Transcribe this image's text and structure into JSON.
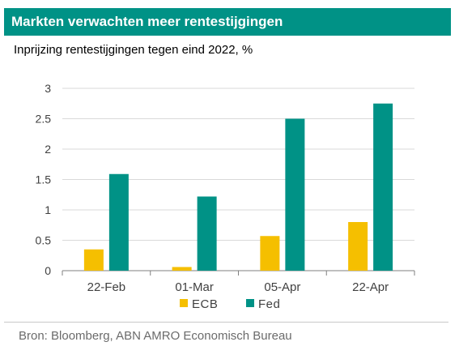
{
  "header": {
    "title": "Markten verwachten meer rentestijgingen"
  },
  "chart_data": {
    "type": "bar",
    "subtitle": "Inprijzing rentestijgingen tegen eind 2022, %",
    "categories": [
      "22-Feb",
      "01-Mar",
      "05-Apr",
      "22-Apr"
    ],
    "series": [
      {
        "name": "ECB",
        "color": "#F5BF00",
        "values": [
          0.35,
          0.06,
          0.57,
          0.8
        ]
      },
      {
        "name": "Fed",
        "color": "#009286",
        "values": [
          1.59,
          1.22,
          2.5,
          2.75
        ]
      }
    ],
    "y_ticks": [
      "0",
      "0.5",
      "1",
      "1.5",
      "2",
      "2.5",
      "3"
    ],
    "ylim": [
      0,
      3
    ],
    "grid": true,
    "legend_position": "bottom"
  },
  "footer": {
    "source": "Bron: Bloomberg, ABN AMRO Economisch Bureau"
  }
}
